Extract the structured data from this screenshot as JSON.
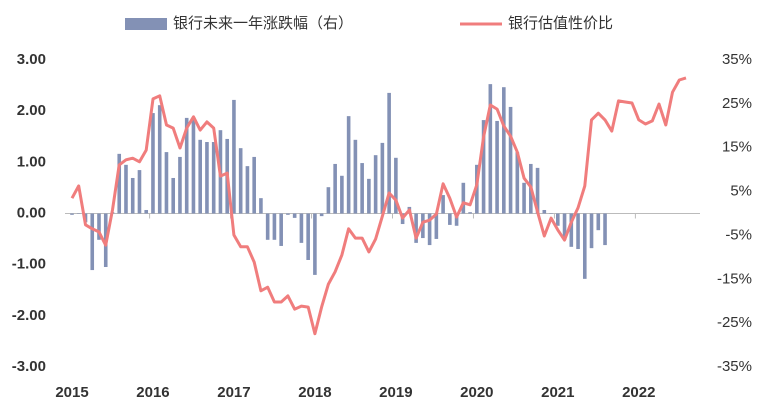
{
  "chart_data": {
    "type": "combo",
    "categories": [
      "2015",
      null,
      null,
      null,
      null,
      null,
      null,
      null,
      null,
      null,
      null,
      null,
      "2016",
      null,
      null,
      null,
      null,
      null,
      null,
      null,
      null,
      null,
      null,
      null,
      "2017",
      null,
      null,
      null,
      null,
      null,
      null,
      null,
      null,
      null,
      null,
      null,
      "2018",
      null,
      null,
      null,
      null,
      null,
      null,
      null,
      null,
      null,
      null,
      null,
      "2019",
      null,
      null,
      null,
      null,
      null,
      null,
      null,
      null,
      null,
      null,
      null,
      "2020",
      null,
      null,
      null,
      null,
      null,
      null,
      null,
      null,
      null,
      null,
      null,
      "2021",
      null,
      null,
      null,
      null,
      null,
      null,
      null,
      null,
      null,
      null,
      null,
      "2022",
      null,
      null,
      null,
      null,
      null,
      null,
      null
    ],
    "series": [
      {
        "name": "银行未来一年涨跌幅（右）",
        "type": "bar",
        "axis": "y2",
        "color": "#8391b5",
        "values": [
          -0.3,
          0.1,
          -2,
          -12.9,
          -6,
          -12.2,
          0.3,
          13.6,
          11.1,
          8.1,
          9.9,
          0.8,
          22.9,
          24.7,
          14.0,
          8.1,
          12.9,
          21.8,
          22.0,
          16.8,
          16.3,
          16.3,
          19.0,
          17.0,
          25.9,
          14.9,
          10.8,
          12.9,
          3.5,
          -6,
          -6,
          -7.4,
          -0.3,
          -1,
          -6.7,
          -10.6,
          -14.0,
          -0.6,
          6.0,
          11.3,
          8.6,
          22.2,
          16.8,
          11.5,
          7.9,
          13.3,
          16.1,
          27.5,
          12.7,
          -2.4,
          1.5,
          -6.7,
          -5.6,
          -7.2,
          -5.8,
          4.2,
          -2.6,
          -2.8,
          7.0,
          0.3,
          11.1,
          21.3,
          29.5,
          21.1,
          28.8,
          24.3,
          14.0,
          7.0,
          11.3,
          10.4,
          0.8,
          0.1,
          -2.8,
          -6,
          -7.6,
          -8.1,
          -14.9,
          -7.9,
          -3.8,
          -7.2,
          null,
          null,
          null,
          null,
          null,
          null,
          null,
          null,
          null,
          null,
          null,
          null
        ]
      },
      {
        "name": "银行估值性价比",
        "type": "line",
        "color": "#f07d7d",
        "values": [
          0.3,
          0.54,
          -0.22,
          -0.3,
          -0.36,
          -0.62,
          0.07,
          0.95,
          1.05,
          1.08,
          1.01,
          1.24,
          2.24,
          2.3,
          1.73,
          1.67,
          1.28,
          1.67,
          1.89,
          1.63,
          1.79,
          1.67,
          0.73,
          0.79,
          -0.42,
          -0.65,
          -0.65,
          -0.95,
          -1.51,
          -1.44,
          -1.73,
          -1.73,
          -1.61,
          -1.87,
          -1.81,
          -1.83,
          -2.35,
          -1.83,
          -1.38,
          -1.14,
          -0.81,
          -0.3,
          -0.48,
          -0.48,
          -0.75,
          -0.5,
          -0.05,
          0.4,
          0.26,
          -0.09,
          0.07,
          -0.48,
          -0.17,
          -0.13,
          -0.01,
          0.58,
          0.3,
          -0.07,
          0.21,
          0.17,
          0.56,
          1.5,
          2.12,
          2.04,
          1.71,
          1.51,
          1.2,
          0.69,
          0.52,
          0.03,
          -0.44,
          -0.09,
          -0.32,
          -0.52,
          -0.17,
          0.11,
          0.54,
          1.83,
          1.96,
          1.83,
          1.61,
          2.2,
          2.18,
          2.16,
          1.83,
          1.75,
          1.81,
          2.14,
          1.73,
          2.37,
          2.61,
          2.65
        ]
      }
    ],
    "ylim": [
      -3,
      3
    ],
    "yticks": [
      {
        "value": -3,
        "label": "-3.00"
      },
      {
        "value": -2,
        "label": "-2.00"
      },
      {
        "value": -1,
        "label": "-1.00"
      },
      {
        "value": 0,
        "label": "0.00"
      },
      {
        "value": 1,
        "label": "1.00"
      },
      {
        "value": 2,
        "label": "2.00"
      },
      {
        "value": 3,
        "label": "3.00"
      }
    ],
    "y2lim": [
      -35,
      35
    ],
    "y2ticks": [
      {
        "value": -35,
        "label": "-35%"
      },
      {
        "value": -25,
        "label": "-25%"
      },
      {
        "value": -15,
        "label": "-15%"
      },
      {
        "value": -5,
        "label": "-5%"
      },
      {
        "value": 5,
        "label": "5%"
      },
      {
        "value": 15,
        "label": "15%"
      },
      {
        "value": 25,
        "label": "25%"
      },
      {
        "value": 35,
        "label": "35%"
      }
    ]
  }
}
